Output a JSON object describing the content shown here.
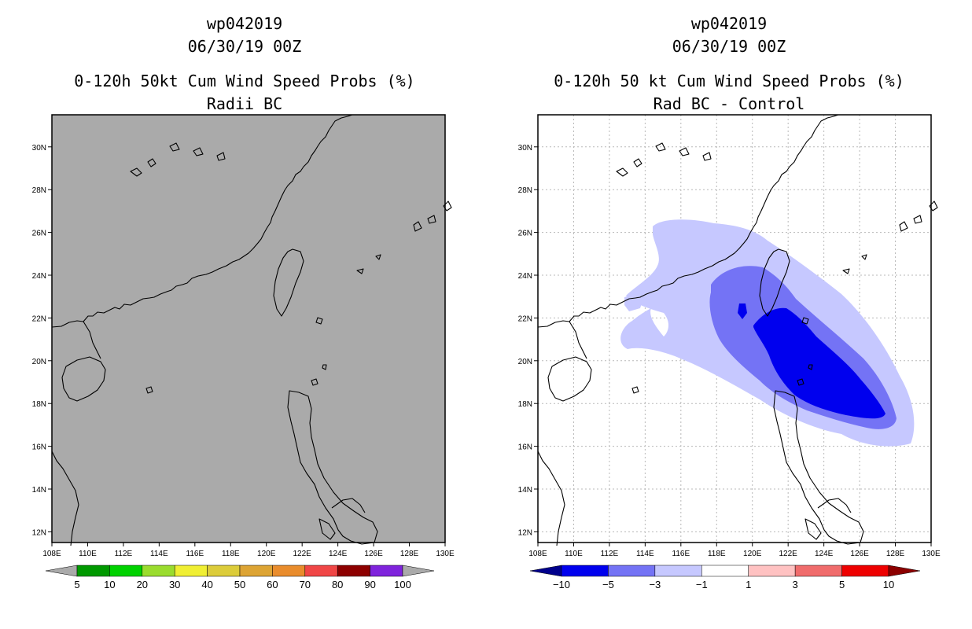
{
  "left_panel": {
    "title_lines": [
      "wp042019",
      "06/30/19 00Z",
      "0-120h 50kt Cum Wind Speed Probs (%)",
      "Radii BC"
    ],
    "fill_color": "#aaaaaa",
    "colorbar": {
      "labels": [
        "5",
        "10",
        "20",
        "30",
        "40",
        "50",
        "60",
        "70",
        "80",
        "90",
        "100"
      ],
      "colors": [
        "#aaaaaa",
        "#009900",
        "#00d200",
        "#9adc2e",
        "#f0ef33",
        "#dccc3a",
        "#dda434",
        "#e98c2c",
        "#f04646",
        "#8d0000",
        "#7f23dc",
        "#aaaaaa"
      ]
    }
  },
  "right_panel": {
    "title_lines": [
      "wp042019",
      "06/30/19 00Z",
      "0-120h 50 kt Cum Wind Speed Probs (%)",
      "Rad BC - Control"
    ],
    "contour_colors": {
      "light": "#c6c8ff",
      "medium": "#7473f5",
      "dark": "#0000ee"
    },
    "colorbar": {
      "labels": [
        "−10",
        "−5",
        "−3",
        "−1",
        "1",
        "3",
        "5",
        "10"
      ],
      "colors": [
        "#00008c",
        "#0000ee",
        "#7473f5",
        "#c6c8ff",
        "#ffffff",
        "#ffc2c2",
        "#f06c6c",
        "#ee0000",
        "#8c0000"
      ]
    }
  },
  "axes": {
    "x_ticks": [
      "108E",
      "110E",
      "112E",
      "114E",
      "116E",
      "118E",
      "120E",
      "122E",
      "124E",
      "126E",
      "128E",
      "130E"
    ],
    "y_ticks": [
      "12N",
      "14N",
      "16N",
      "18N",
      "20N",
      "22N",
      "24N",
      "26N",
      "28N",
      "30N"
    ],
    "lon_range": [
      108,
      130
    ],
    "lat_range": [
      11.5,
      31.5
    ]
  }
}
